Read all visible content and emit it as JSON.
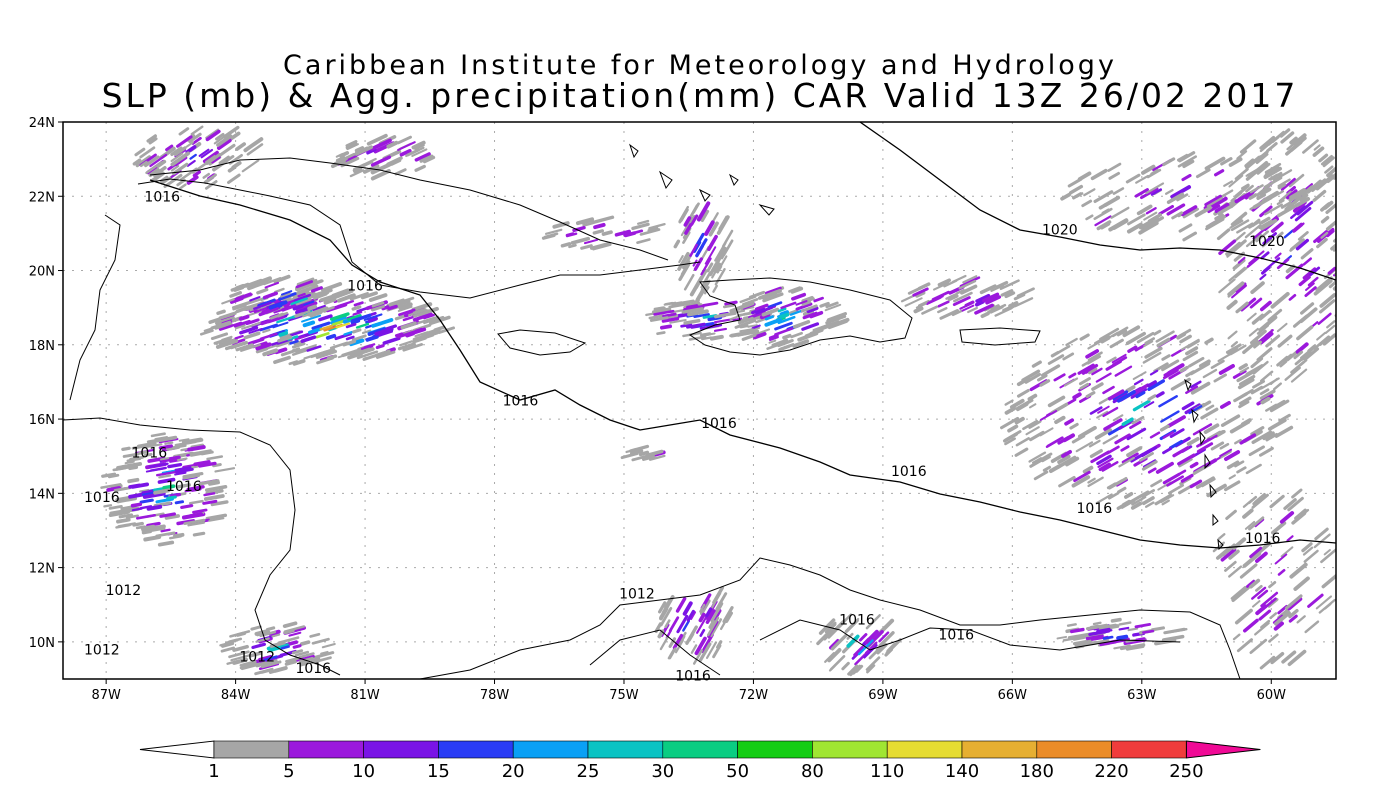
{
  "title": "Caribbean Institute for Meteorology and Hydrology",
  "subtitle": "SLP (mb) & Agg. precipitation(mm) CAR Valid 13Z 26/02 2017",
  "axes": {
    "lat_labels": [
      "24N",
      "22N",
      "20N",
      "18N",
      "16N",
      "14N",
      "12N",
      "10N"
    ],
    "lon_labels": [
      "87W",
      "84W",
      "81W",
      "78W",
      "75W",
      "72W",
      "69W",
      "66W",
      "63W",
      "60W"
    ]
  },
  "contour_labels": [
    {
      "text": "1016",
      "lon": -85.7,
      "lat": 22.0
    },
    {
      "text": "1016",
      "lon": -81.0,
      "lat": 19.6
    },
    {
      "text": "1016",
      "lon": -77.4,
      "lat": 16.5
    },
    {
      "text": "1016",
      "lon": -72.8,
      "lat": 15.9
    },
    {
      "text": "1016",
      "lon": -68.4,
      "lat": 14.6
    },
    {
      "text": "1016",
      "lon": -64.1,
      "lat": 13.6
    },
    {
      "text": "1016",
      "lon": -60.2,
      "lat": 12.8
    },
    {
      "text": "1020",
      "lon": -64.9,
      "lat": 21.1
    },
    {
      "text": "1020",
      "lon": -60.1,
      "lat": 20.8
    },
    {
      "text": "1016",
      "lon": -86.0,
      "lat": 15.1
    },
    {
      "text": "1016",
      "lon": -85.2,
      "lat": 14.2
    },
    {
      "text": "1016",
      "lon": -87.1,
      "lat": 13.9
    },
    {
      "text": "1012",
      "lon": -86.6,
      "lat": 11.4
    },
    {
      "text": "1012",
      "lon": -74.7,
      "lat": 11.3
    },
    {
      "text": "1016",
      "lon": -69.6,
      "lat": 10.6
    },
    {
      "text": "1016",
      "lon": -67.3,
      "lat": 10.2
    },
    {
      "text": "1012",
      "lon": -87.1,
      "lat": 9.8
    },
    {
      "text": "1012",
      "lon": -83.5,
      "lat": 9.6
    },
    {
      "text": "1016",
      "lon": -82.2,
      "lat": 9.3
    },
    {
      "text": "1016",
      "lon": -73.4,
      "lat": 9.1
    }
  ],
  "colorbar": {
    "labels": [
      "1",
      "5",
      "10",
      "15",
      "20",
      "25",
      "30",
      "50",
      "80",
      "110",
      "140",
      "180",
      "220",
      "250"
    ],
    "colors": [
      "#ffffff",
      "#a6a6a6",
      "#9b19dc",
      "#7a14e6",
      "#2a3cf5",
      "#0aa0f5",
      "#0ac3c3",
      "#0acd82",
      "#14cd14",
      "#a0e632",
      "#e6dc32",
      "#e6af32",
      "#eb8c28",
      "#f03c3c",
      "#f00a96"
    ]
  },
  "precip_colors": [
    "#a6a6a6",
    "#9b19dc",
    "#7a14e6",
    "#2a3cf5",
    "#0aa0f5",
    "#0ac3c3",
    "#0acd82",
    "#14cd14",
    "#a0e632",
    "#e6dc32",
    "#e6af32",
    "#eb8c28",
    "#f03c3c"
  ]
}
